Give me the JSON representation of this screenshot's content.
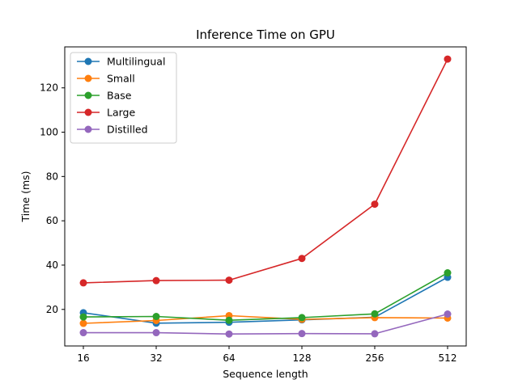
{
  "chart_data": {
    "type": "line",
    "title": "Inference Time on GPU",
    "xlabel": "Sequence length",
    "ylabel": "Time (ms)",
    "categories": [
      "16",
      "32",
      "64",
      "128",
      "256",
      "512"
    ],
    "x_scale": "log2",
    "ylim": [
      3.5,
      138.5
    ],
    "yticks": [
      20,
      40,
      60,
      80,
      100,
      120
    ],
    "grid": false,
    "legend_position": "top-left",
    "series": [
      {
        "name": "Multilingual",
        "color": "#1f77b4",
        "values": [
          18.5,
          13.8,
          14.2,
          15.3,
          16.5,
          34.5
        ]
      },
      {
        "name": "Small",
        "color": "#ff7f0e",
        "values": [
          13.7,
          15.0,
          17.2,
          15.5,
          16.3,
          16.1
        ]
      },
      {
        "name": "Base",
        "color": "#2ca02c",
        "values": [
          16.6,
          16.8,
          15.1,
          16.3,
          18.0,
          36.5
        ]
      },
      {
        "name": "Large",
        "color": "#d62728",
        "values": [
          32.0,
          33.0,
          33.2,
          43.0,
          67.5,
          133.0
        ]
      },
      {
        "name": "Distilled",
        "color": "#9467bd",
        "values": [
          9.5,
          9.5,
          8.9,
          9.1,
          9.0,
          17.9
        ]
      }
    ]
  }
}
